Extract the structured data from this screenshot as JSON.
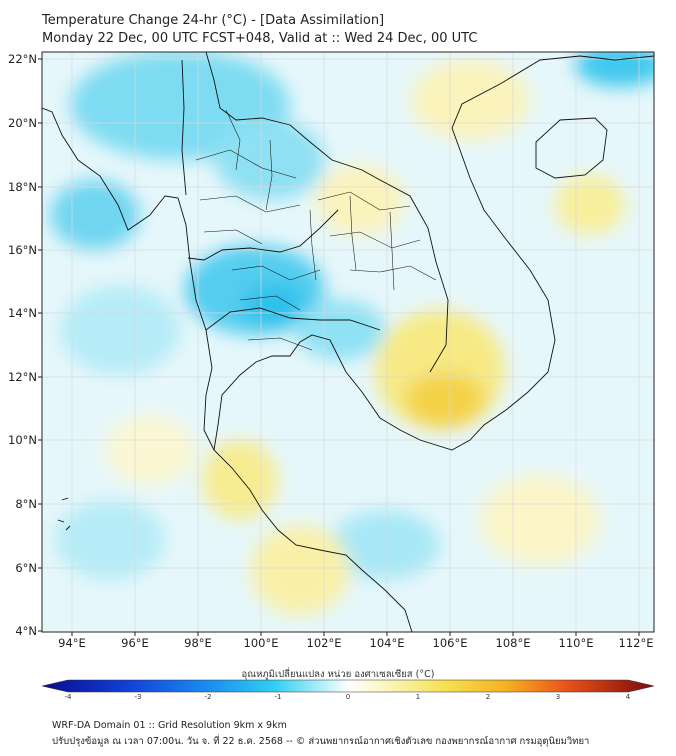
{
  "header": {
    "title_line1": "Temperature Change 24-hr (°C) - [Data Assimilation]",
    "title_line2": "Monday 22 Dec, 00 UTC FCST+048, Valid at :: Wed 24 Dec, 00 UTC"
  },
  "map": {
    "lat_labels": [
      "22°N",
      "20°N",
      "18°N",
      "16°N",
      "14°N",
      "12°N",
      "10°N",
      "8°N",
      "6°N",
      "4°N"
    ],
    "lon_labels": [
      "94°E",
      "96°E",
      "98°E",
      "100°E",
      "102°E",
      "104°E",
      "106°E",
      "108°E",
      "110°E",
      "112°E"
    ],
    "lat_range": [
      4,
      22
    ],
    "lon_range": [
      93,
      112.5
    ]
  },
  "colorbar": {
    "title": "อุณหภูมิเปลี่ยนแปลง หน่วย องศาเซลเซียส (°C)",
    "ticks": [
      "-4",
      "-3",
      "-2",
      "-1",
      "0",
      "1",
      "2",
      "3",
      "4"
    ],
    "range": [
      -4,
      4
    ],
    "colors": {
      "cold_dark": "#0a0a8c",
      "cold_mid": "#1a5cf0",
      "cyan": "#22ccf0",
      "neutral": "#ffffff",
      "yellow": "#f5e050",
      "orange": "#f07a10",
      "hot_dark": "#7a0a0a"
    }
  },
  "footer": {
    "line1": "WRF-DA Domain 01 :: Grid Resolution 9km x 9km",
    "line2": "ปรับปรุงข้อมูล ณ เวลา 07:00น. วัน จ. ที่ 22 ธ.ค. 2568 -- © ส่วนพยากรณ์อากาศเชิงตัวเลข กองพยากรณ์อากาศ กรมอุตุนิยมวิทยา"
  }
}
